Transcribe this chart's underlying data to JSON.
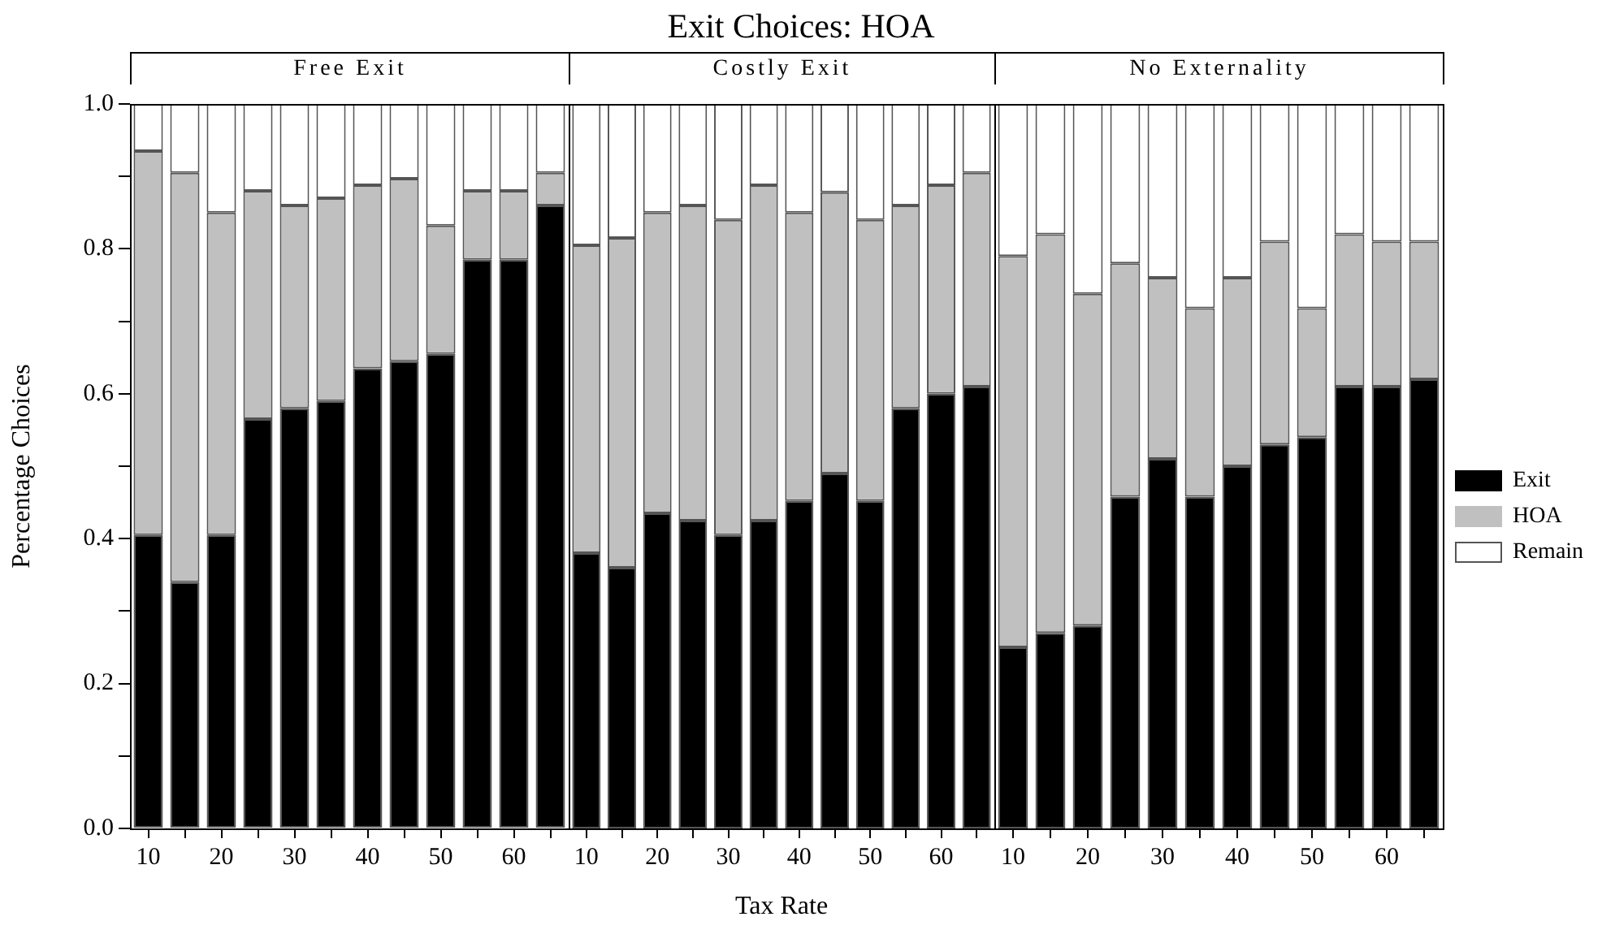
{
  "chart_data": [
    {
      "type": "bar",
      "title": "Free Exit",
      "ylabel": "Percentage Choices",
      "annotations": [
        "Exit Choices: HOA"
      ],
      "stacked": true,
      "grid": false,
      "legend": false,
      "tick_labels": true,
      "categories": [
        "10",
        null,
        "20",
        null,
        "30",
        null,
        "40",
        null,
        "50",
        null,
        "60",
        null
      ],
      "ylim": [
        0,
        1.0
      ],
      "yticks": [
        {
          "value": 0,
          "label": "0.0"
        },
        {
          "value": 0.1,
          "label": null
        },
        0.2,
        {
          "value": 0.3,
          "label": null
        },
        0.4,
        {
          "value": 0.5,
          "label": null
        },
        0.6,
        {
          "value": 0.7,
          "label": null
        },
        0.8,
        {
          "value": 0.9,
          "label": null
        },
        {
          "value": 1,
          "label": "1.0"
        }
      ],
      "series": [
        {
          "color": "#000000",
          "values": [
            0.405,
            0.34,
            0.405,
            0.565,
            0.58,
            0.59,
            0.635,
            0.645,
            0.655,
            0.785,
            0.785,
            0.86
          ]
        },
        {
          "color": "#c0c0c0",
          "values": [
            0.53,
            0.565,
            0.445,
            0.315,
            0.28,
            0.28,
            0.253,
            0.252,
            0.177,
            0.095,
            0.095,
            0.045
          ]
        },
        {
          "color": "#ffffff",
          "values": [
            0.065,
            0.095,
            0.15,
            0.12,
            0.14,
            0.13,
            0.112,
            0.103,
            0.168,
            0.12,
            0.12,
            0.095
          ]
        }
      ]
    },
    {
      "type": "bar",
      "title": "Costly Exit",
      "xlabel": "Tax Rate",
      "stacked": true,
      "grid": false,
      "legend": false,
      "tick_labels": "x",
      "categories": [
        "10",
        null,
        "20",
        null,
        "30",
        null,
        "40",
        null,
        "50",
        null,
        "60",
        null
      ],
      "ylim": [
        0,
        1.0
      ],
      "series": [
        {
          "color": "#000000",
          "values": [
            0.38,
            0.36,
            0.435,
            0.425,
            0.405,
            0.425,
            0.452,
            0.49,
            0.452,
            0.58,
            0.6,
            0.61
          ]
        },
        {
          "color": "#c0c0c0",
          "values": [
            0.425,
            0.455,
            0.415,
            0.435,
            0.435,
            0.463,
            0.398,
            0.388,
            0.388,
            0.28,
            0.288,
            0.295
          ]
        },
        {
          "color": "#ffffff",
          "values": [
            0.195,
            0.185,
            0.15,
            0.14,
            0.16,
            0.112,
            0.15,
            0.122,
            0.16,
            0.14,
            0.112,
            0.095
          ]
        }
      ]
    },
    {
      "type": "bar",
      "title": "No Externality",
      "stacked": true,
      "grid": false,
      "legend": "right",
      "tick_labels": "x",
      "categories": [
        "10",
        null,
        "20",
        null,
        "30",
        null,
        "40",
        null,
        "50",
        null,
        "60",
        null
      ],
      "ylim": [
        0,
        1.0
      ],
      "series": [
        {
          "name": "Exit",
          "color": "#000000",
          "values": [
            0.25,
            0.27,
            0.28,
            0.458,
            0.51,
            0.458,
            0.5,
            0.53,
            0.54,
            0.61,
            0.61,
            0.62
          ]
        },
        {
          "name": "HOA",
          "color": "#c0c0c0",
          "values": [
            0.54,
            0.55,
            0.458,
            0.322,
            0.25,
            0.26,
            0.26,
            0.28,
            0.178,
            0.21,
            0.2,
            0.19
          ]
        },
        {
          "name": "Remain",
          "color": "#ffffff",
          "values": [
            0.21,
            0.18,
            0.262,
            0.22,
            0.24,
            0.282,
            0.24,
            0.19,
            0.282,
            0.18,
            0.19,
            0.19
          ]
        }
      ]
    }
  ]
}
